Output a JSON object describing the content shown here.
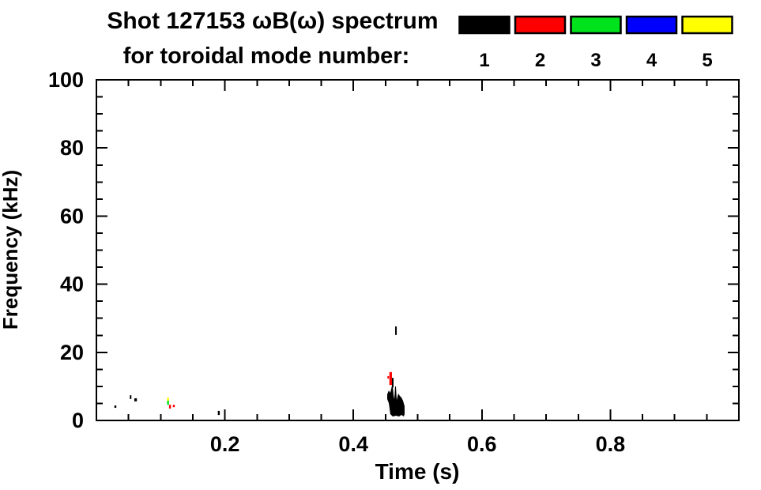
{
  "title": {
    "line1": "Shot 127153 ωB(ω) spectrum",
    "line2": "for toroidal mode number:"
  },
  "legend": {
    "items": [
      {
        "label": "1",
        "color": "#000000"
      },
      {
        "label": "2",
        "color": "#ff0000"
      },
      {
        "label": "3",
        "color": "#00e31c"
      },
      {
        "label": "4",
        "color": "#0000ff"
      },
      {
        "label": "5",
        "color": "#ffff00"
      }
    ]
  },
  "axes": {
    "xlabel": "Time (s)",
    "ylabel": "Frequency (kHz)",
    "x_tick_labels": [
      "0.2",
      "0.4",
      "0.6",
      "0.8"
    ],
    "y_tick_labels": [
      "0",
      "20",
      "40",
      "60",
      "80",
      "100"
    ]
  },
  "chart_data": {
    "type": "scatter",
    "title": "Shot 127153 ωB(ω) spectrum for toroidal mode number: 1-5",
    "xlabel": "Time (s)",
    "ylabel": "Frequency (kHz)",
    "xlim": [
      0.0,
      1.0
    ],
    "ylim": [
      0,
      100
    ],
    "x_major_ticks": [
      0.2,
      0.4,
      0.6,
      0.8
    ],
    "x_minor_step": 0.05,
    "y_major_ticks": [
      0,
      20,
      40,
      60,
      80,
      100
    ],
    "y_minor_step": 5,
    "grid": false,
    "legend_position": "top",
    "mode_colors": {
      "1": "#000000",
      "2": "#ff0000",
      "3": "#00e31c",
      "4": "#0000ff",
      "5": "#ffff00"
    },
    "marks": [
      {
        "n": 1,
        "t0": 0.028,
        "t1": 0.031,
        "f0": 3.7,
        "f1": 4.4
      },
      {
        "n": 1,
        "t0": 0.052,
        "t1": 0.054,
        "f0": 6.3,
        "f1": 7.4
      },
      {
        "n": 1,
        "t0": 0.059,
        "t1": 0.063,
        "f0": 5.6,
        "f1": 6.5
      },
      {
        "n": 5,
        "t0": 0.11,
        "t1": 0.113,
        "f0": 5.8,
        "f1": 6.7
      },
      {
        "n": 3,
        "t0": 0.11,
        "t1": 0.113,
        "f0": 4.6,
        "f1": 5.8
      },
      {
        "n": 2,
        "t0": 0.113,
        "t1": 0.116,
        "f0": 3.5,
        "f1": 4.6
      },
      {
        "n": 2,
        "t0": 0.119,
        "t1": 0.122,
        "f0": 3.9,
        "f1": 4.6
      },
      {
        "n": 1,
        "t0": 0.189,
        "t1": 0.192,
        "f0": 1.6,
        "f1": 2.8
      },
      {
        "n": 1,
        "t0": 0.465,
        "t1": 0.467,
        "f0": 25.1,
        "f1": 27.6
      },
      {
        "n": 2,
        "t0": 0.453,
        "t1": 0.455,
        "f0": 12.3,
        "f1": 13.0
      },
      {
        "n": 2,
        "t0": 0.456,
        "t1": 0.46,
        "f0": 10.4,
        "f1": 14.2
      },
      {
        "n": 1,
        "t0": 0.46,
        "t1": 0.462,
        "f0": 9.7,
        "f1": 12.5
      }
    ],
    "blob": {
      "n": 1,
      "comment": "dense black n=1 feature near t=0.46-0.48, f=1-10 kHz",
      "polygon_t_f": [
        [
          0.4526,
          7.66
        ],
        [
          0.4551,
          8.82
        ],
        [
          0.4575,
          8.12
        ],
        [
          0.46,
          10.21
        ],
        [
          0.4612,
          10.21
        ],
        [
          0.4625,
          7.42
        ],
        [
          0.4637,
          6.26
        ],
        [
          0.4649,
          9.98
        ],
        [
          0.4662,
          9.98
        ],
        [
          0.4674,
          6.03
        ],
        [
          0.4699,
          7.89
        ],
        [
          0.4723,
          7.19
        ],
        [
          0.4748,
          6.73
        ],
        [
          0.4772,
          5.8
        ],
        [
          0.4797,
          4.18
        ],
        [
          0.4797,
          1.86
        ],
        [
          0.4785,
          1.16
        ],
        [
          0.4748,
          1.62
        ],
        [
          0.4711,
          1.16
        ],
        [
          0.4662,
          1.39
        ],
        [
          0.4612,
          1.16
        ],
        [
          0.4575,
          1.86
        ],
        [
          0.4563,
          3.48
        ],
        [
          0.4551,
          5.1
        ],
        [
          0.4526,
          6.26
        ]
      ]
    }
  }
}
